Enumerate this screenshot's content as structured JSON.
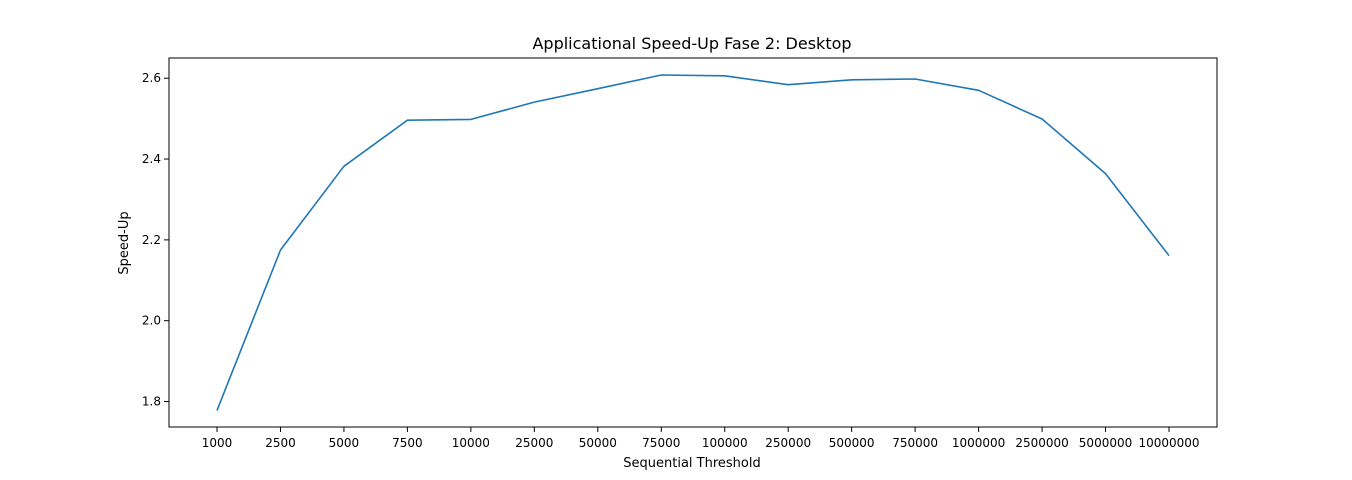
{
  "chart_data": {
    "type": "line",
    "title": "Applicational Speed-Up Fase 2: Desktop",
    "xlabel": "Sequential Threshold",
    "ylabel": "Speed-Up",
    "categories": [
      "1000",
      "2500",
      "5000",
      "7500",
      "10000",
      "25000",
      "50000",
      "75000",
      "100000",
      "250000",
      "500000",
      "750000",
      "1000000",
      "2500000",
      "5000000",
      "10000000"
    ],
    "series": [
      {
        "values": [
          1.778,
          2.175,
          2.382,
          2.496,
          2.498,
          2.541,
          2.574,
          2.608,
          2.606,
          2.584,
          2.596,
          2.598,
          2.57,
          2.499,
          2.364,
          2.161
        ]
      }
    ],
    "yticks": [
      1.8,
      2.0,
      2.2,
      2.4,
      2.6
    ],
    "ylim": [
      1.737,
      2.65
    ],
    "grid": false,
    "line_color": "#1f77b4"
  }
}
